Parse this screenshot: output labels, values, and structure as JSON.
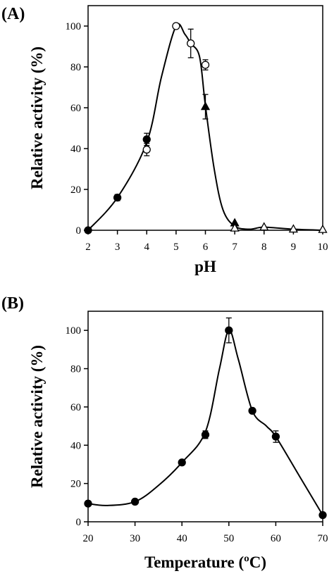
{
  "chart_data": [
    {
      "panel_label": "(A)",
      "type": "line",
      "xlabel": "pH",
      "ylabel": "Relative activity (%)",
      "xlim": [
        2,
        10
      ],
      "ylim": [
        0,
        110
      ],
      "xticks": [
        "2",
        "3",
        "4",
        "5",
        "6",
        "7",
        "8",
        "9",
        "10"
      ],
      "yticks": [
        "0",
        "20",
        "40",
        "60",
        "80",
        "100"
      ],
      "grid": false,
      "legend": "none",
      "series": [
        {
          "marker": "filled-circle",
          "x": [
            2,
            3,
            4
          ],
          "y": [
            0,
            16,
            44.5
          ],
          "err": [
            0,
            1.5,
            3
          ]
        },
        {
          "marker": "open-circle",
          "x": [
            4,
            5,
            5.5,
            6
          ],
          "y": [
            39.5,
            100,
            91.5,
            81
          ],
          "err": [
            3,
            0,
            7,
            2.5
          ]
        },
        {
          "marker": "filled-triangle",
          "x": [
            6,
            7
          ],
          "y": [
            60.5,
            3.5
          ],
          "err": [
            6,
            0
          ]
        },
        {
          "marker": "open-triangle",
          "x": [
            7,
            8,
            9,
            10
          ],
          "y": [
            1,
            1.5,
            0.5,
            0.3
          ],
          "err": [
            0,
            0,
            0,
            0
          ]
        }
      ],
      "curve": {
        "x": [
          2,
          3,
          4,
          4.5,
          5,
          5.3,
          5.5,
          5.8,
          6,
          6.3,
          6.6,
          7,
          7.5,
          8,
          9,
          10
        ],
        "y": [
          0,
          16,
          43,
          75,
          100,
          96,
          91.5,
          85,
          61,
          30,
          10,
          2,
          0.5,
          1.5,
          0.5,
          0
        ]
      }
    },
    {
      "panel_label": "(B)",
      "type": "line",
      "xlabel": "Temperature (ºC)",
      "ylabel": "Relative activity (%)",
      "xlim": [
        20,
        70
      ],
      "ylim": [
        0,
        110
      ],
      "xticks": [
        "20",
        "30",
        "40",
        "50",
        "60",
        "70"
      ],
      "yticks": [
        "0",
        "20",
        "40",
        "60",
        "80",
        "100"
      ],
      "grid": false,
      "legend": "none",
      "series": [
        {
          "marker": "filled-circle",
          "x": [
            20,
            30,
            40,
            45,
            50,
            55,
            60,
            70
          ],
          "y": [
            9.5,
            10.5,
            31,
            45.5,
            100,
            58,
            44.5,
            3.5
          ],
          "err": [
            0,
            0,
            0,
            2,
            6.5,
            0,
            3,
            0
          ]
        }
      ],
      "curve": {
        "x": [
          20,
          24,
          30,
          35,
          40,
          45,
          48,
          50,
          52,
          55,
          58,
          60,
          65,
          70
        ],
        "y": [
          9.5,
          8.5,
          10.5,
          19,
          31,
          47,
          80,
          100,
          85,
          58,
          50,
          44.5,
          24,
          3.5
        ]
      }
    }
  ]
}
